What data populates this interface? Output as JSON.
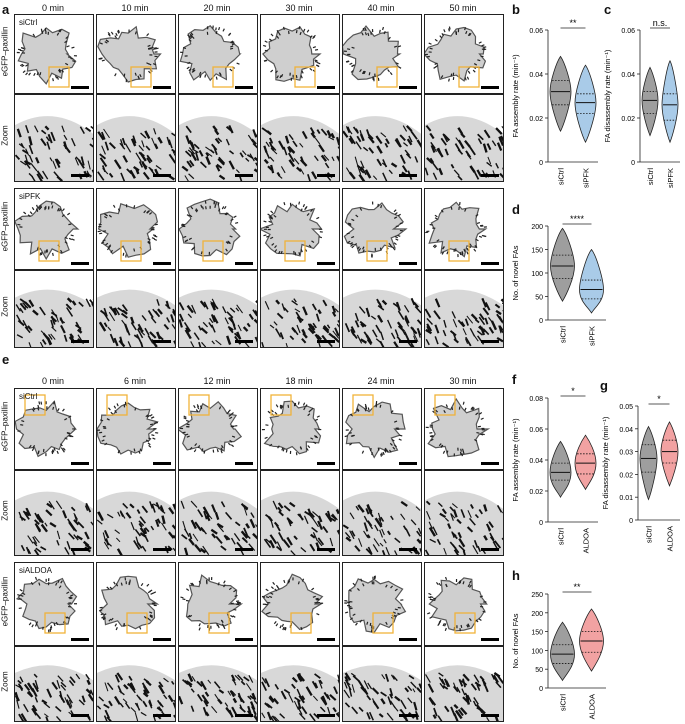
{
  "panel_letters": {
    "a": "a",
    "b": "b",
    "c": "c",
    "d": "d",
    "e": "e",
    "f": "f",
    "g": "g",
    "h": "h"
  },
  "time_labels_a": [
    "0 min",
    "10 min",
    "20 min",
    "30 min",
    "40 min",
    "50 min"
  ],
  "time_labels_e": [
    "0 min",
    "6 min",
    "12 min",
    "18 min",
    "24 min",
    "30 min"
  ],
  "row_labels": {
    "egfp": "eGFP–paxillin",
    "zoom": "Zoom"
  },
  "condition_labels": {
    "sictrl": "siCtrl",
    "sipfk": "siPFK",
    "sialdoa": "siALDOA"
  },
  "colors": {
    "ctrl_fill": "#9e9e9e",
    "pfk_fill": "#a9cbe8",
    "aldoa_fill": "#f2a2a2",
    "roi_box": "#f0b33a"
  },
  "chart_data": [
    {
      "id": "b",
      "type": "violin",
      "ylabel": "FA assembly rate (min⁻¹)",
      "ylim": [
        0,
        0.06
      ],
      "yticks": [
        "0",
        "0.02",
        "0.04",
        "0.06"
      ],
      "categories": [
        "siCtrl",
        "siPFK"
      ],
      "significance": "**",
      "series": [
        {
          "name": "siCtrl",
          "median": 0.032,
          "q1": 0.026,
          "q3": 0.037,
          "min": 0.014,
          "max": 0.048
        },
        {
          "name": "siPFK",
          "median": 0.027,
          "q1": 0.022,
          "q3": 0.031,
          "min": 0.009,
          "max": 0.044
        }
      ]
    },
    {
      "id": "c",
      "type": "violin",
      "ylabel": "FA disassembly rate (min⁻¹)",
      "ylim": [
        0,
        0.06
      ],
      "yticks": [
        "0",
        "0.02",
        "0.04",
        "0.06"
      ],
      "categories": [
        "siCtrl",
        "siPFK"
      ],
      "significance": "n.s.",
      "series": [
        {
          "name": "siCtrl",
          "median": 0.028,
          "q1": 0.022,
          "q3": 0.032,
          "min": 0.012,
          "max": 0.043
        },
        {
          "name": "siPFK",
          "median": 0.026,
          "q1": 0.019,
          "q3": 0.031,
          "min": 0.009,
          "max": 0.046
        }
      ]
    },
    {
      "id": "d",
      "type": "violin",
      "ylabel": "No. of novel FAs",
      "ylim": [
        0,
        200
      ],
      "yticks": [
        "0",
        "50",
        "100",
        "150",
        "200"
      ],
      "categories": [
        "siCtrl",
        "siPFK"
      ],
      "significance": "****",
      "series": [
        {
          "name": "siCtrl",
          "median": 115,
          "q1": 88,
          "q3": 138,
          "min": 40,
          "max": 195
        },
        {
          "name": "siPFK",
          "median": 65,
          "q1": 45,
          "q3": 85,
          "min": 15,
          "max": 150
        }
      ]
    },
    {
      "id": "f",
      "type": "violin",
      "ylabel": "FA assembly rate (min⁻¹)",
      "ylim": [
        0,
        0.08
      ],
      "yticks": [
        "0",
        "0.02",
        "0.04",
        "0.06",
        "0.08"
      ],
      "categories": [
        "siCtrl",
        "siALDOA"
      ],
      "significance": "*",
      "series": [
        {
          "name": "siCtrl",
          "median": 0.032,
          "q1": 0.027,
          "q3": 0.038,
          "min": 0.016,
          "max": 0.052
        },
        {
          "name": "siALDOA",
          "median": 0.038,
          "q1": 0.031,
          "q3": 0.044,
          "min": 0.021,
          "max": 0.056
        }
      ]
    },
    {
      "id": "g",
      "type": "violin",
      "ylabel": "FA disassembly rate (min⁻¹)",
      "ylim": [
        0,
        0.05
      ],
      "yticks": [
        "0",
        "0.01",
        "0.02",
        "0.03",
        "0.04",
        "0.05"
      ],
      "categories": [
        "siCtrl",
        "siALDOA"
      ],
      "significance": "*",
      "series": [
        {
          "name": "siCtrl",
          "median": 0.027,
          "q1": 0.021,
          "q3": 0.033,
          "min": 0.009,
          "max": 0.041
        },
        {
          "name": "siALDOA",
          "median": 0.03,
          "q1": 0.025,
          "q3": 0.035,
          "min": 0.015,
          "max": 0.043
        }
      ]
    },
    {
      "id": "h",
      "type": "violin",
      "ylabel": "No. of novel FAs",
      "ylim": [
        0,
        250
      ],
      "yticks": [
        "0",
        "50",
        "100",
        "150",
        "200",
        "250"
      ],
      "categories": [
        "siCtrl",
        "siALDOA"
      ],
      "significance": "**",
      "series": [
        {
          "name": "siCtrl",
          "median": 90,
          "q1": 65,
          "q3": 115,
          "min": 20,
          "max": 175
        },
        {
          "name": "siALDOA",
          "median": 125,
          "q1": 95,
          "q3": 150,
          "min": 45,
          "max": 210
        }
      ]
    }
  ]
}
